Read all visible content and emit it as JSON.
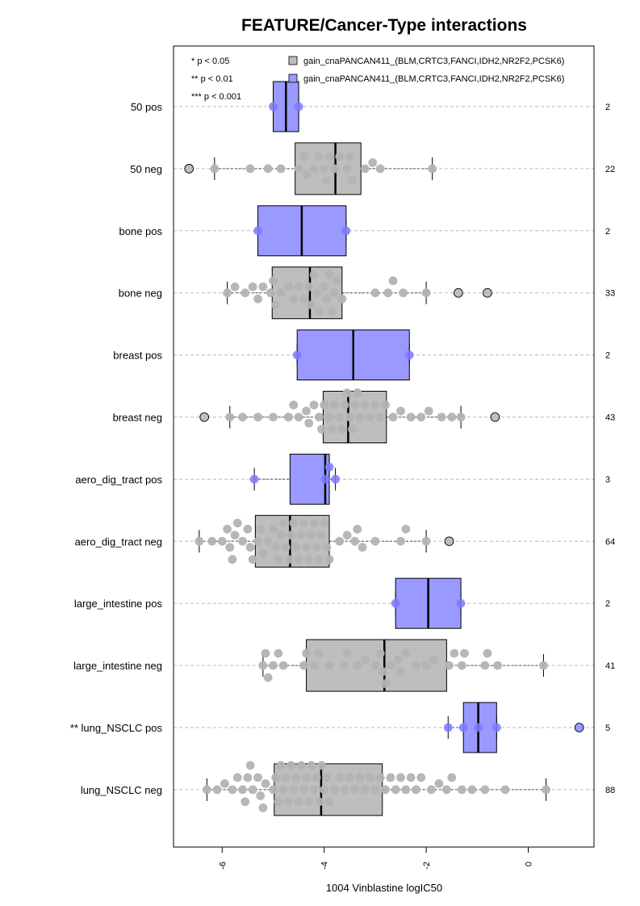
{
  "chart_data": {
    "type": "boxplot",
    "title": "FEATURE/Cancer-Type interactions",
    "xlabel": "1004 Vinblastine logIC50",
    "ylabel": "",
    "xlim": [
      -7.0,
      1.3
    ],
    "xticks": [
      -6,
      -4,
      -2,
      0
    ],
    "xtick_labels": [
      "-6",
      "-4",
      "-2",
      "0"
    ],
    "grid": "horizontal dashed",
    "orientation": "horizontal",
    "significance_legend": [
      "* p < 0.05",
      "** p < 0.01",
      "*** p < 0.001"
    ],
    "legend": [
      {
        "label": "gain_cnaPANCAN411_(BLM,CRTC3,FANCI,IDH2,NR2F2,PCSK6)",
        "color": "#bebebe"
      },
      {
        "label": "gain_cnaPANCAN411_(BLM,CRTC3,FANCI,IDH2,NR2F2,PCSK6)",
        "color": "#9999ff"
      }
    ],
    "colors": {
      "neg_box": "#bebebe",
      "pos_box": "#9999ff",
      "neg_point": "#b3b3b3",
      "pos_point": "#7a7aff",
      "grid": "#bbbbbb"
    },
    "groups": [
      {
        "label": "50 pos",
        "n": "2",
        "status": "pos",
        "whisker": [
          -5.0,
          -4.5
        ],
        "box": [
          -5.0,
          -4.5
        ],
        "median": -4.75,
        "points": [
          -5.0,
          -4.5
        ],
        "outliers": []
      },
      {
        "label": "50 neg",
        "n": "22",
        "status": "neg",
        "whisker": [
          -6.15,
          -1.88
        ],
        "box": [
          -4.57,
          -3.28
        ],
        "median": -3.78,
        "points": [
          -6.15,
          -5.45,
          -5.1,
          -4.85,
          -4.5,
          -4.4,
          -4.35,
          -4.2,
          -4.1,
          -4.0,
          -3.95,
          -3.9,
          -3.8,
          -3.7,
          -3.55,
          -3.5,
          -3.45,
          -3.2,
          -3.05,
          -2.9,
          -1.88
        ],
        "outliers": [
          -6.65
        ]
      },
      {
        "label": "bone pos",
        "n": "2",
        "status": "pos",
        "whisker": [
          -5.3,
          -3.57
        ],
        "box": [
          -5.3,
          -3.57
        ],
        "median": -4.44,
        "points": [
          -5.3,
          -3.57
        ],
        "outliers": []
      },
      {
        "label": "bone neg",
        "n": "33",
        "status": "neg",
        "whisker": [
          -5.9,
          -2.0
        ],
        "box": [
          -5.02,
          -3.65
        ],
        "median": -4.28,
        "points": [
          -5.9,
          -5.75,
          -5.55,
          -5.4,
          -5.3,
          -5.2,
          -5.05,
          -5.0,
          -4.95,
          -4.85,
          -4.7,
          -4.6,
          -4.5,
          -4.4,
          -4.3,
          -4.25,
          -4.2,
          -4.15,
          -4.1,
          -4.0,
          -3.95,
          -3.9,
          -3.85,
          -3.8,
          -3.75,
          -3.65,
          -3.0,
          -2.75,
          -2.65,
          -2.45,
          -2.0
        ],
        "outliers": [
          -1.37,
          -0.8
        ]
      },
      {
        "label": "breast pos",
        "n": "2",
        "status": "pos",
        "whisker": [
          -4.53,
          -2.33
        ],
        "box": [
          -4.53,
          -2.33
        ],
        "median": -3.43,
        "points": [
          -4.53,
          -2.33
        ],
        "outliers": []
      },
      {
        "label": "breast neg",
        "n": "43",
        "status": "neg",
        "whisker": [
          -5.85,
          -1.32
        ],
        "box": [
          -4.02,
          -2.78
        ],
        "median": -3.53,
        "points": [
          -5.85,
          -5.6,
          -5.3,
          -5.0,
          -4.7,
          -4.6,
          -4.5,
          -4.35,
          -4.3,
          -4.2,
          -4.1,
          -4.05,
          -4.0,
          -3.9,
          -3.85,
          -3.8,
          -3.7,
          -3.65,
          -3.6,
          -3.55,
          -3.5,
          -3.45,
          -3.4,
          -3.35,
          -3.3,
          -3.2,
          -3.1,
          -3.0,
          -2.9,
          -2.8,
          -2.65,
          -2.5,
          -2.3,
          -2.1,
          -1.95,
          -1.7,
          -1.5,
          -1.32,
          -0.65
        ],
        "outliers": [
          -6.35,
          -0.65
        ]
      },
      {
        "label": "aero_dig_tract pos",
        "n": "3",
        "status": "pos",
        "whisker": [
          -5.37,
          -3.78
        ],
        "box": [
          -4.67,
          -3.9
        ],
        "median": -3.98,
        "points": [
          -5.37,
          -3.98,
          -3.9,
          -3.78
        ],
        "outliers": []
      },
      {
        "label": "aero_dig_tract neg",
        "n": "64",
        "status": "neg",
        "whisker": [
          -6.45,
          -2.0
        ],
        "box": [
          -5.35,
          -3.9
        ],
        "median": -4.67,
        "points": [
          -6.45,
          -6.2,
          -6.0,
          -5.9,
          -5.85,
          -5.8,
          -5.75,
          -5.7,
          -5.6,
          -5.5,
          -5.45,
          -5.4,
          -5.3,
          -5.25,
          -5.2,
          -5.1,
          -5.0,
          -4.95,
          -4.9,
          -4.85,
          -4.8,
          -4.75,
          -4.7,
          -4.65,
          -4.6,
          -4.55,
          -4.5,
          -4.45,
          -4.4,
          -4.35,
          -4.3,
          -4.25,
          -4.2,
          -4.15,
          -4.1,
          -4.05,
          -4.0,
          -3.95,
          -3.9,
          -3.7,
          -3.55,
          -3.4,
          -3.35,
          -3.25,
          -3.0,
          -2.5,
          -2.4,
          -2.0
        ],
        "outliers": [
          -1.55
        ]
      },
      {
        "label": "large_intestine pos",
        "n": "2",
        "status": "pos",
        "whisker": [
          -2.6,
          -1.32
        ],
        "box": [
          -2.6,
          -1.32
        ],
        "median": -1.96,
        "points": [
          -2.6,
          -1.32
        ],
        "outliers": []
      },
      {
        "label": "large_intestine neg",
        "n": "41",
        "status": "neg",
        "whisker": [
          -5.2,
          0.3
        ],
        "box": [
          -4.35,
          -1.6
        ],
        "median": -2.82,
        "points": [
          -5.2,
          -5.15,
          -5.1,
          -5.0,
          -4.9,
          -4.8,
          -4.4,
          -4.35,
          -4.2,
          -4.1,
          -3.9,
          -3.6,
          -3.55,
          -3.35,
          -3.2,
          -3.0,
          -2.9,
          -2.85,
          -2.8,
          -2.7,
          -2.55,
          -2.5,
          -2.4,
          -2.2,
          -2.0,
          -1.85,
          -1.55,
          -1.45,
          -1.3,
          -1.25,
          -0.85,
          -0.8,
          -0.6,
          0.3
        ],
        "outliers": []
      },
      {
        "label": "** lung_NSCLC pos",
        "n": "5",
        "status": "pos",
        "whisker": [
          -1.57,
          -0.62
        ],
        "box": [
          -1.27,
          -0.62
        ],
        "median": -0.98,
        "points": [
          -1.57,
          -1.27,
          -0.98,
          -0.62
        ],
        "outliers": [
          1.0
        ]
      },
      {
        "label": "lung_NSCLC neg",
        "n": "88",
        "status": "neg",
        "whisker": [
          -6.3,
          0.35
        ],
        "box": [
          -4.98,
          -2.86
        ],
        "median": -4.06,
        "points": [
          -6.3,
          -6.1,
          -5.95,
          -5.8,
          -5.7,
          -5.6,
          -5.55,
          -5.5,
          -5.45,
          -5.4,
          -5.3,
          -5.25,
          -5.2,
          -5.15,
          -5.0,
          -4.95,
          -4.9,
          -4.85,
          -4.8,
          -4.75,
          -4.7,
          -4.65,
          -4.6,
          -4.55,
          -4.5,
          -4.45,
          -4.4,
          -4.35,
          -4.3,
          -4.25,
          -4.2,
          -4.15,
          -4.1,
          -4.05,
          -4.0,
          -3.95,
          -3.9,
          -3.8,
          -3.7,
          -3.6,
          -3.5,
          -3.4,
          -3.3,
          -3.2,
          -3.1,
          -3.0,
          -2.9,
          -2.8,
          -2.7,
          -2.6,
          -2.5,
          -2.4,
          -2.3,
          -2.2,
          -2.1,
          -1.9,
          -1.75,
          -1.6,
          -1.5,
          -1.3,
          -1.1,
          -0.85,
          -0.45,
          0.35
        ],
        "outliers": []
      }
    ]
  }
}
